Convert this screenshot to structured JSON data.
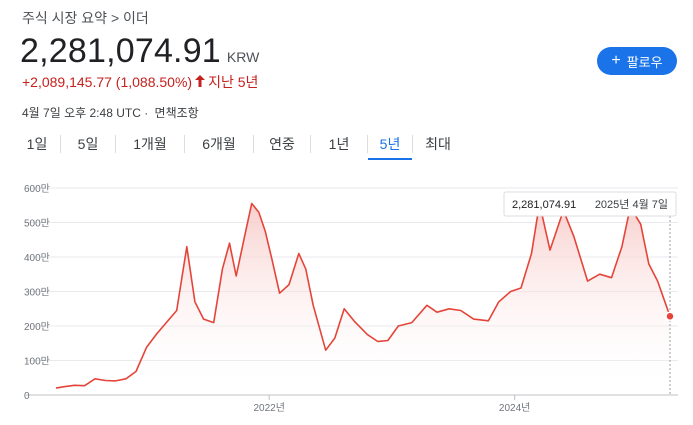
{
  "header": {
    "breadcrumb": "주식 시장 요약 > 이더",
    "price": "2,281,074.91",
    "currency": "KRW",
    "change": "+2,089,145.77 (1,088.50%)",
    "change_period": "지난 5년",
    "timestamp": "4월 7일 오후 2:48 UTC ·",
    "disclaimer_link": "면책조항",
    "follow_label": "팔로우"
  },
  "tabs": [
    {
      "label": "1일",
      "active": false
    },
    {
      "label": "5일",
      "active": false
    },
    {
      "label": "1개월",
      "active": false
    },
    {
      "label": "6개월",
      "active": false
    },
    {
      "label": "연중",
      "active": false
    },
    {
      "label": "1년",
      "active": false
    },
    {
      "label": "5년",
      "active": true
    },
    {
      "label": "최대",
      "active": false
    }
  ],
  "chart_data": {
    "type": "area",
    "ylim": [
      0,
      6000000
    ],
    "y_ticks": [
      {
        "value": 0,
        "label": "0"
      },
      {
        "value": 1000000,
        "label": "100만"
      },
      {
        "value": 2000000,
        "label": "200만"
      },
      {
        "value": 3000000,
        "label": "300만"
      },
      {
        "value": 4000000,
        "label": "400만"
      },
      {
        "value": 5000000,
        "label": "500만"
      },
      {
        "value": 6000000,
        "label": "600만"
      }
    ],
    "x_ticks": [
      {
        "date": "2022-01-01",
        "label": "2022년"
      },
      {
        "date": "2024-01-01",
        "label": "2024년"
      }
    ],
    "tooltip": {
      "value": "2,281,074.91",
      "date": "2025년 4월 7일"
    },
    "colors": {
      "line": "#e4453a",
      "fill_top": "#f6c6c3",
      "grid": "#e8eaed"
    },
    "series": [
      {
        "points": [
          [
            "2020-04-07",
            200000
          ],
          [
            "2020-05-01",
            240000
          ],
          [
            "2020-06-01",
            280000
          ],
          [
            "2020-07-01",
            270000
          ],
          [
            "2020-08-01",
            470000
          ],
          [
            "2020-09-01",
            420000
          ],
          [
            "2020-10-01",
            410000
          ],
          [
            "2020-11-01",
            470000
          ],
          [
            "2020-12-01",
            680000
          ],
          [
            "2021-01-01",
            1380000
          ],
          [
            "2021-02-01",
            1780000
          ],
          [
            "2021-03-01",
            2100000
          ],
          [
            "2021-04-01",
            2450000
          ],
          [
            "2021-05-01",
            4300000
          ],
          [
            "2021-05-25",
            2700000
          ],
          [
            "2021-06-20",
            2200000
          ],
          [
            "2021-07-20",
            2100000
          ],
          [
            "2021-08-15",
            3650000
          ],
          [
            "2021-09-05",
            4400000
          ],
          [
            "2021-09-25",
            3450000
          ],
          [
            "2021-10-20",
            4600000
          ],
          [
            "2021-11-10",
            5550000
          ],
          [
            "2021-12-01",
            5300000
          ],
          [
            "2021-12-20",
            4750000
          ],
          [
            "2022-01-10",
            3900000
          ],
          [
            "2022-02-01",
            2950000
          ],
          [
            "2022-03-01",
            3200000
          ],
          [
            "2022-03-30",
            4100000
          ],
          [
            "2022-04-20",
            3650000
          ],
          [
            "2022-05-12",
            2600000
          ],
          [
            "2022-06-18",
            1300000
          ],
          [
            "2022-07-15",
            1650000
          ],
          [
            "2022-08-12",
            2500000
          ],
          [
            "2022-09-10",
            2150000
          ],
          [
            "2022-10-20",
            1750000
          ],
          [
            "2022-11-20",
            1550000
          ],
          [
            "2022-12-20",
            1580000
          ],
          [
            "2023-01-20",
            2000000
          ],
          [
            "2023-03-01",
            2100000
          ],
          [
            "2023-04-15",
            2600000
          ],
          [
            "2023-05-15",
            2400000
          ],
          [
            "2023-06-20",
            2500000
          ],
          [
            "2023-07-25",
            2450000
          ],
          [
            "2023-09-01",
            2200000
          ],
          [
            "2023-10-15",
            2150000
          ],
          [
            "2023-11-15",
            2700000
          ],
          [
            "2023-12-20",
            3000000
          ],
          [
            "2024-01-20",
            3100000
          ],
          [
            "2024-02-20",
            4100000
          ],
          [
            "2024-03-15",
            5550000
          ],
          [
            "2024-04-15",
            4200000
          ],
          [
            "2024-05-25",
            5350000
          ],
          [
            "2024-06-25",
            4600000
          ],
          [
            "2024-08-05",
            3300000
          ],
          [
            "2024-09-10",
            3500000
          ],
          [
            "2024-10-15",
            3400000
          ],
          [
            "2024-11-15",
            4300000
          ],
          [
            "2024-12-10",
            5450000
          ],
          [
            "2025-01-10",
            4950000
          ],
          [
            "2025-02-03",
            3800000
          ],
          [
            "2025-03-01",
            3300000
          ],
          [
            "2025-04-07",
            2281074.91
          ]
        ]
      }
    ]
  }
}
